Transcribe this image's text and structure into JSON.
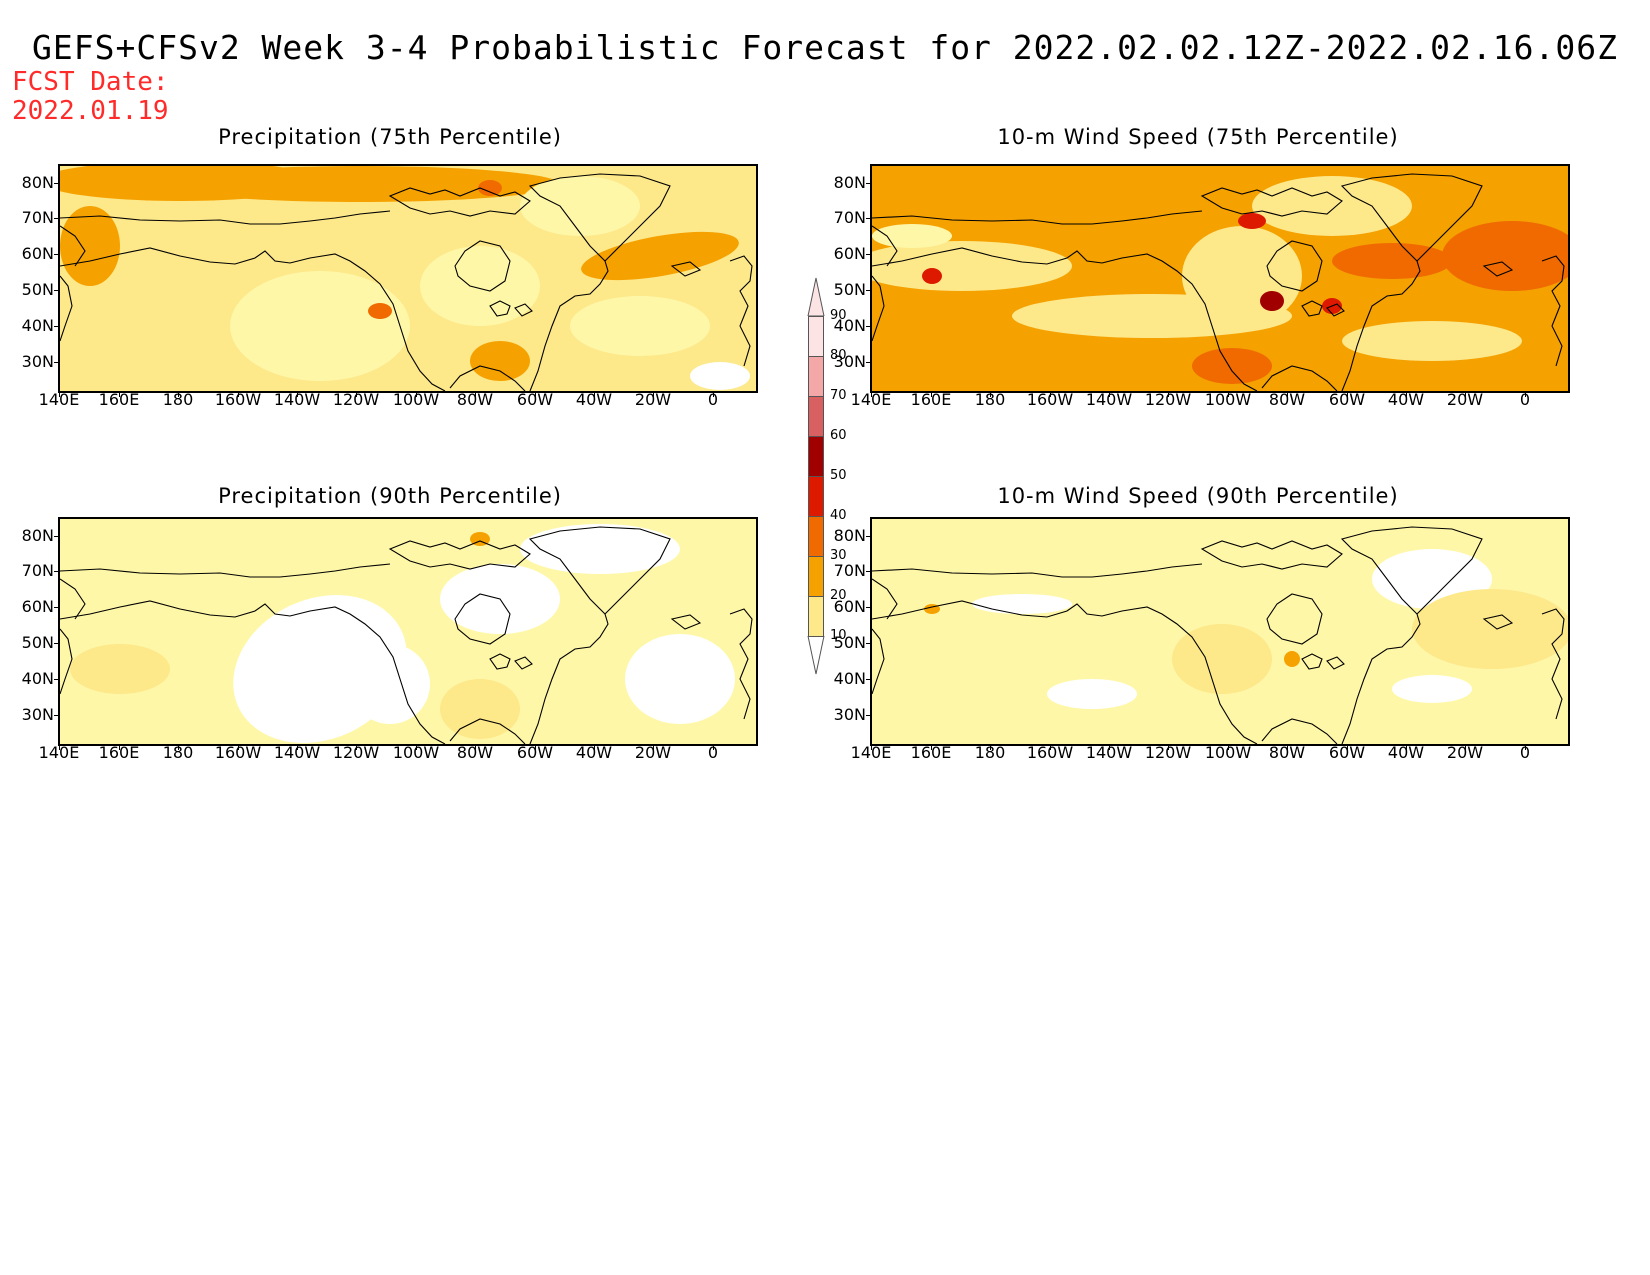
{
  "title": "GEFS+CFSv2 Week 3-4 Probabilistic Forecast for 2022.02.02.12Z-2022.02.16.06Z",
  "fcst_date": {
    "label": "FCST Date:",
    "value": "2022.01.19"
  },
  "panels": [
    {
      "id": "precip75",
      "title": "Precipitation (75th Percentile)",
      "dominant_level": "20-30"
    },
    {
      "id": "wind75",
      "title": "10-m Wind Speed (75th Percentile)",
      "dominant_level": "30-40"
    },
    {
      "id": "precip90",
      "title": "Precipitation (90th Percentile)",
      "dominant_level": "<10"
    },
    {
      "id": "wind90",
      "title": "10-m Wind Speed (90th Percentile)",
      "dominant_level": "10-20"
    }
  ],
  "lat_labels": [
    "80N",
    "70N",
    "60N",
    "50N",
    "40N",
    "30N"
  ],
  "lon_labels": [
    "140E",
    "160E",
    "180",
    "160W",
    "140W",
    "120W",
    "100W",
    "80W",
    "60W",
    "40W",
    "20W",
    "0"
  ],
  "colorbar": {
    "labels": [
      "10",
      "20",
      "30",
      "40",
      "50",
      "60",
      "70",
      "80",
      "90"
    ],
    "colors": [
      "#fff7a8",
      "#fde88a",
      "#f5a100",
      "#f06a00",
      "#dd1a00",
      "#a00000",
      "#d86060",
      "#f3a7a7",
      "#fde4e4"
    ]
  }
}
